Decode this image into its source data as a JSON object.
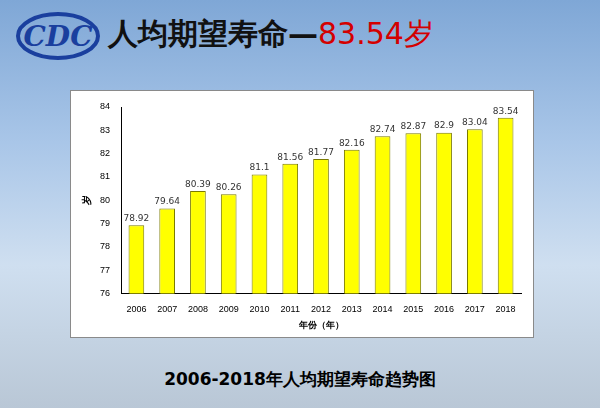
{
  "header": {
    "logo": "CDC",
    "title": [
      "人均期望寿命—",
      "83.54岁"
    ]
  },
  "chart_data": {
    "type": "bar",
    "title": "2006-2018年人均期望寿命趋势图",
    "x_label": "年份（年）",
    "y_label": "岁",
    "categories": [
      "2006",
      "2007",
      "2008",
      "2009",
      "2010",
      "2011",
      "2012",
      "2013",
      "2014",
      "2015",
      "2016",
      "2017",
      "2018"
    ],
    "values": [
      78.92,
      79.64,
      80.39,
      80.26,
      81.1,
      81.56,
      81.77,
      82.16,
      82.74,
      82.87,
      82.9,
      83.04,
      83.54
    ],
    "color": "#ffff00",
    "ylim": [
      76,
      84
    ],
    "yticks": [
      76,
      77,
      78,
      79,
      80,
      81,
      82,
      83,
      84
    ],
    "grid": false,
    "data_labels": true
  }
}
